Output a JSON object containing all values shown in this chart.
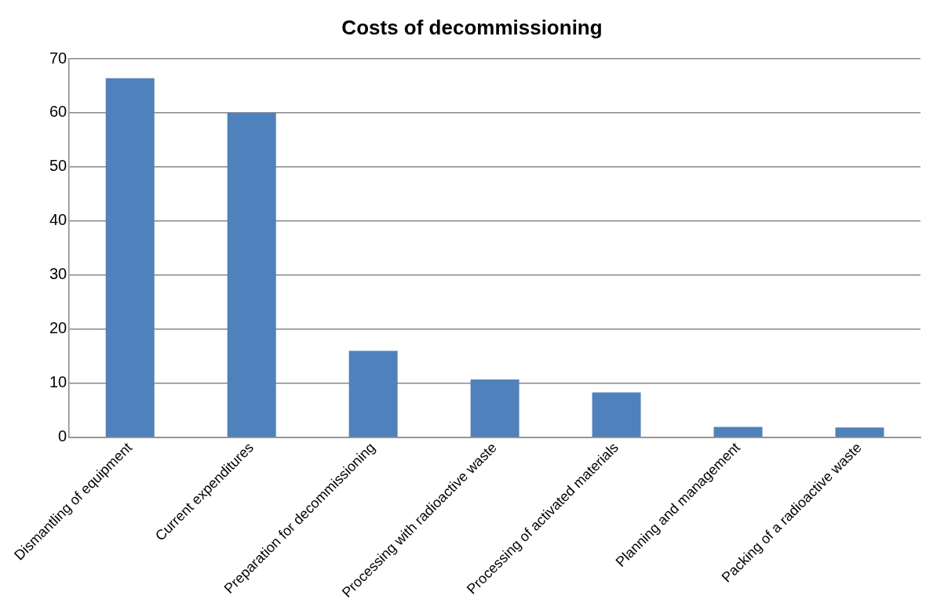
{
  "chart_data": {
    "type": "bar",
    "title": "Costs of decommissioning",
    "categories": [
      "Dismantling of equipment",
      "Current expenditures",
      "Preparation for decommissioning",
      "Processing with radioactive waste",
      "Processing of activated materials",
      "Planning and management",
      "Packing of a radioactive waste"
    ],
    "values": [
      66.4,
      60,
      16,
      10.7,
      8.3,
      1.9,
      1.8
    ],
    "color": "#4f81bd",
    "ylim": [
      0,
      70
    ],
    "yticks": [
      0,
      10,
      20,
      30,
      40,
      50,
      60,
      70
    ],
    "grid": "y",
    "legend": false
  }
}
